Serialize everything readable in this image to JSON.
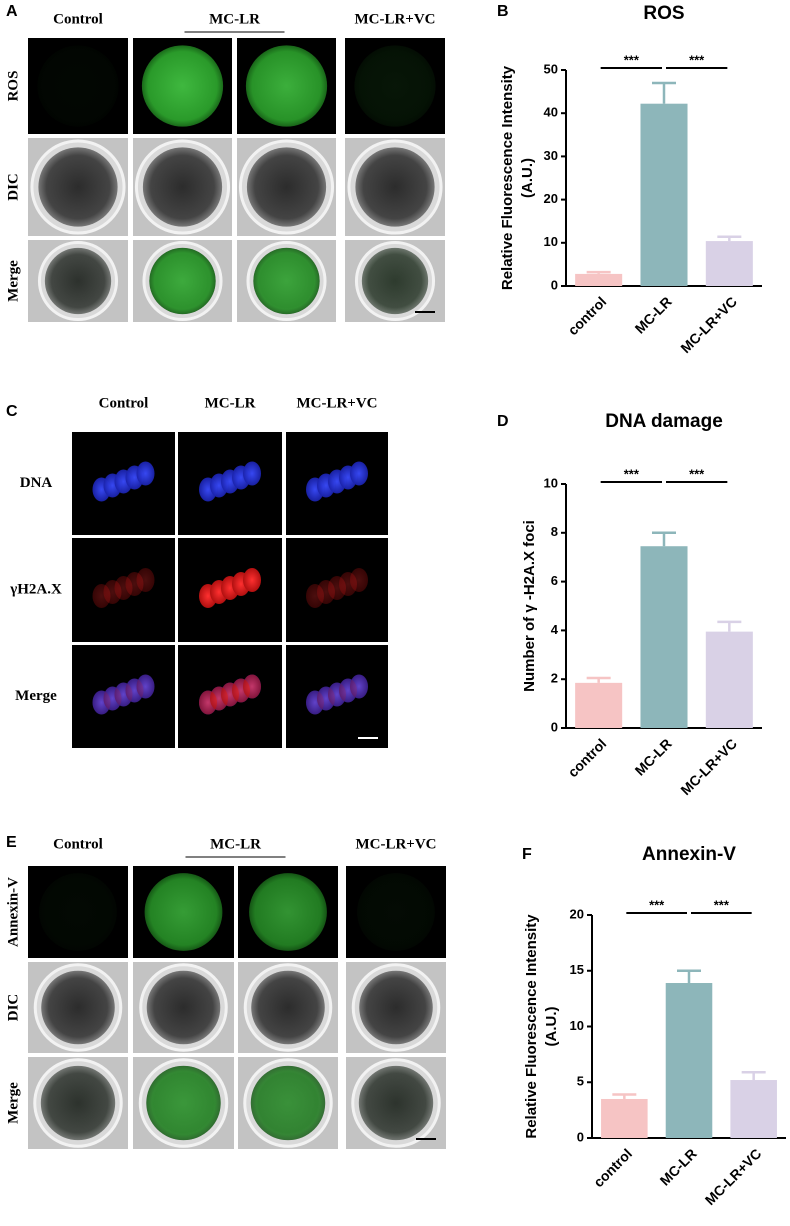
{
  "image_panels": [
    {
      "letter": "A",
      "columns": [
        "Control",
        "MC-LR",
        "MC-LR+VC"
      ],
      "rows": [
        "ROS",
        "DIC",
        "Merge"
      ]
    },
    {
      "letter": "C",
      "columns": [
        "Control",
        "MC-LR",
        "MC-LR+VC"
      ],
      "rows": [
        "DNA",
        "γH2A.X",
        "Merge"
      ]
    },
    {
      "letter": "E",
      "columns": [
        "Control",
        "MC-LR",
        "MC-LR+VC"
      ],
      "rows": [
        "Annexin-V",
        "DIC",
        "Merge"
      ]
    }
  ],
  "chart_data": [
    {
      "type": "bar",
      "letter": "B",
      "title": "ROS",
      "y_label": [
        "Relative Fluorescence Intensity",
        "(A.U.)"
      ],
      "categories": [
        "control",
        "MC-LR",
        "MC-LR+VC"
      ],
      "values": [
        2.8,
        42.2,
        10.4
      ],
      "errors": [
        0.4,
        4.8,
        1.0
      ],
      "colors": [
        "#f6c4c4",
        "#8db6ba",
        "#d9d1e6"
      ],
      "ylim": [
        0,
        50
      ],
      "yticks": [
        0,
        10,
        20,
        30,
        40,
        50
      ],
      "significance": [
        "***",
        "***"
      ]
    },
    {
      "type": "bar",
      "letter": "D",
      "title": "DNA damage",
      "y_label": [
        "Number of γ -H2A.X foci"
      ],
      "categories": [
        "control",
        "MC-LR",
        "MC-LR+VC"
      ],
      "values": [
        1.85,
        7.45,
        3.95
      ],
      "errors": [
        0.2,
        0.55,
        0.4
      ],
      "colors": [
        "#f6c4c4",
        "#8db6ba",
        "#d9d1e6"
      ],
      "ylim": [
        0,
        10
      ],
      "yticks": [
        0,
        2,
        4,
        6,
        8,
        10
      ],
      "significance": [
        "***",
        "***"
      ]
    },
    {
      "type": "bar",
      "letter": "F",
      "title": "Annexin-V",
      "y_label": [
        "Relative Fluorescence Intensity",
        "(A.U.)"
      ],
      "categories": [
        "control",
        "MC-LR",
        "MC-LR+VC"
      ],
      "values": [
        3.5,
        13.9,
        5.2
      ],
      "errors": [
        0.4,
        1.1,
        0.7
      ],
      "colors": [
        "#f6c4c4",
        "#8db6ba",
        "#d9d1e6"
      ],
      "ylim": [
        0,
        20
      ],
      "yticks": [
        0,
        5,
        10,
        15,
        20
      ],
      "significance": [
        "***",
        "***"
      ]
    }
  ]
}
